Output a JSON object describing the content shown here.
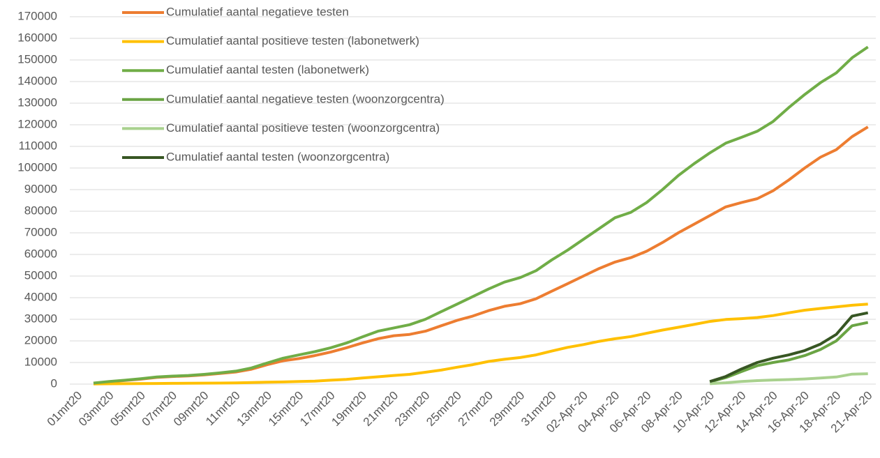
{
  "chart_data": {
    "type": "line",
    "categories": [
      "01mrt20",
      null,
      "03mrt20",
      null,
      "05mrt20",
      null,
      "07mrt20",
      null,
      "09mrt20",
      null,
      "11mrt20",
      null,
      "13mrt20",
      null,
      "15mrt20",
      null,
      "17mrt20",
      null,
      "19mrt20",
      null,
      "21mrt20",
      null,
      "23mrt20",
      null,
      "25mrt20",
      null,
      "27mrt20",
      null,
      "29mrt20",
      null,
      "31mrt20",
      null,
      "02-Apr-20",
      null,
      "04-Apr-20",
      null,
      "06-Apr-20",
      null,
      "08-Apr-20",
      null,
      "10-Apr-20",
      null,
      "12-Apr-20",
      null,
      "14-Apr-20",
      null,
      "16-Apr-20",
      null,
      "18-Apr-20",
      null,
      "21-Apr-20"
    ],
    "series": [
      {
        "name": "Cumulatief aantal negatieve  testen",
        "color": "#ed7d31",
        "values": [
          null,
          400,
          1100,
          1700,
          2300,
          3100,
          3500,
          3800,
          4300,
          4900,
          5600,
          6900,
          9000,
          10800,
          11800,
          13200,
          14800,
          16800,
          19000,
          21000,
          22400,
          23000,
          24500,
          27000,
          29500,
          31500,
          34000,
          36000,
          37200,
          39500,
          43000,
          46500,
          50000,
          53500,
          56500,
          58500,
          61500,
          65500,
          70000,
          74000,
          78000,
          82000,
          84000,
          85800,
          89500,
          94500,
          100000,
          105000,
          108500,
          114500,
          119000
        ]
      },
      {
        "name": "Cumulatief aantal positieve  testen (labonetwerk)",
        "color": "#ffc000",
        "values": [
          null,
          100,
          150,
          200,
          250,
          300,
          350,
          400,
          450,
          500,
          550,
          700,
          900,
          1000,
          1200,
          1400,
          1800,
          2200,
          2800,
          3400,
          4000,
          4500,
          5500,
          6500,
          7800,
          9000,
          10500,
          11500,
          12300,
          13500,
          15300,
          17000,
          18300,
          19800,
          21000,
          22000,
          23500,
          25000,
          26300,
          27600,
          29000,
          29900,
          30300,
          30800,
          31700,
          33000,
          34200,
          35000,
          35700,
          36500,
          37000
        ]
      },
      {
        "name": "Cumulatief aantal testen (labonetwerk)",
        "color": "#70ad47",
        "values": [
          null,
          500,
          1200,
          1800,
          2500,
          3300,
          3700,
          4000,
          4500,
          5200,
          6000,
          7500,
          9800,
          12000,
          13500,
          15000,
          16800,
          19000,
          21800,
          24500,
          26000,
          27500,
          30000,
          33500,
          37000,
          40500,
          44000,
          47200,
          49300,
          52500,
          57500,
          62000,
          67000,
          72000,
          77000,
          79500,
          84000,
          90000,
          96500,
          102000,
          107000,
          111500,
          114200,
          117000,
          121500,
          128000,
          134000,
          139500,
          144000,
          151000,
          156000
        ]
      },
      {
        "name": "Cumulatief aantal negatieve  testen (woonzorgcentra)",
        "color": "#6aa444",
        "values": [
          null,
          null,
          null,
          null,
          null,
          null,
          null,
          null,
          null,
          null,
          null,
          null,
          null,
          null,
          null,
          null,
          null,
          null,
          null,
          null,
          null,
          null,
          null,
          null,
          null,
          null,
          null,
          null,
          null,
          null,
          null,
          null,
          null,
          null,
          null,
          null,
          null,
          null,
          null,
          null,
          1000,
          3000,
          5800,
          8500,
          10000,
          11200,
          13200,
          16000,
          20000,
          27000,
          28500
        ]
      },
      {
        "name": "Cumulatief aantal positieve  testen (woonzorgcentra)",
        "color": "#a9d18e",
        "values": [
          null,
          null,
          null,
          null,
          null,
          null,
          null,
          null,
          null,
          null,
          null,
          null,
          null,
          null,
          null,
          null,
          null,
          null,
          null,
          null,
          null,
          null,
          null,
          null,
          null,
          null,
          null,
          null,
          null,
          null,
          null,
          null,
          null,
          null,
          null,
          null,
          null,
          null,
          null,
          null,
          200,
          600,
          1200,
          1600,
          1900,
          2100,
          2400,
          2800,
          3300,
          4600,
          4800
        ]
      },
      {
        "name": "Cumulatief aantal testen (woonzorgcentra)",
        "color": "#375623",
        "values": [
          null,
          null,
          null,
          null,
          null,
          null,
          null,
          null,
          null,
          null,
          null,
          null,
          null,
          null,
          null,
          null,
          null,
          null,
          null,
          null,
          null,
          null,
          null,
          null,
          null,
          null,
          null,
          null,
          null,
          null,
          null,
          null,
          null,
          null,
          null,
          null,
          null,
          null,
          null,
          null,
          1200,
          3500,
          7000,
          10000,
          12000,
          13500,
          15500,
          18500,
          23000,
          31500,
          33000
        ]
      }
    ],
    "ylim": [
      0,
      170000
    ],
    "yticks": [
      0,
      10000,
      20000,
      30000,
      40000,
      50000,
      60000,
      70000,
      80000,
      90000,
      100000,
      110000,
      120000,
      130000,
      140000,
      150000,
      160000,
      170000
    ],
    "grid": true,
    "legend_position": "upper left"
  }
}
